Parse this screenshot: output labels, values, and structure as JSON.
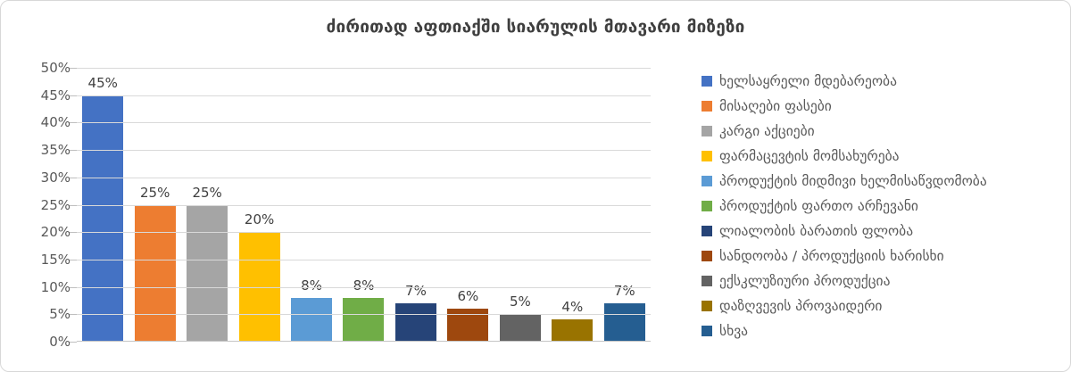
{
  "chart_data": {
    "type": "bar",
    "title": "ძირითად აფთიაქში სიარულის მთავარი მიზეზი",
    "categories": [
      "ხელსაყრელი მდებარეობა",
      "მისაღები ფასები",
      "კარგი აქციები",
      "ფარმაცევტის მომსახურება",
      "პროდუქტის მიდმივი ხელმისაწვდომობა",
      "პროდუქტის ფართო არჩევანი",
      "ლიალობის ბარათის ფლობა",
      "სანდოობა / პროდუქციის ხარისხი",
      "ექსკლუზიური პროდუქცია",
      "დაზღვევის პროვაიდერი",
      "სხვა"
    ],
    "values": [
      45,
      25,
      25,
      20,
      8,
      8,
      7,
      6,
      5,
      4,
      7
    ],
    "data_labels": [
      "45%",
      "25%",
      "25%",
      "20%",
      "8%",
      "8%",
      "7%",
      "6%",
      "5%",
      "4%",
      "7%"
    ],
    "colors": [
      "#4472C4",
      "#ED7D31",
      "#A5A5A5",
      "#FFC000",
      "#5B9BD5",
      "#70AD47",
      "#264478",
      "#9E480E",
      "#636363",
      "#997300",
      "#255E91"
    ],
    "ylim": [
      0,
      50
    ],
    "ytick_step": 5,
    "ytick_labels": [
      "0%",
      "5%",
      "10%",
      "15%",
      "20%",
      "25%",
      "30%",
      "35%",
      "40%",
      "45%",
      "50%"
    ],
    "grid": true,
    "legend_position": "right",
    "xlabel": "",
    "ylabel": ""
  },
  "style_colors": {
    "grid": "#D9D9D9",
    "axis": "#C6C6C6",
    "tick_label": "#595959",
    "data_label": "#404040",
    "legend_text": "#595959",
    "title": "#3F3F3F",
    "border": "#D8D8D8",
    "background": "#FFFFFF"
  }
}
